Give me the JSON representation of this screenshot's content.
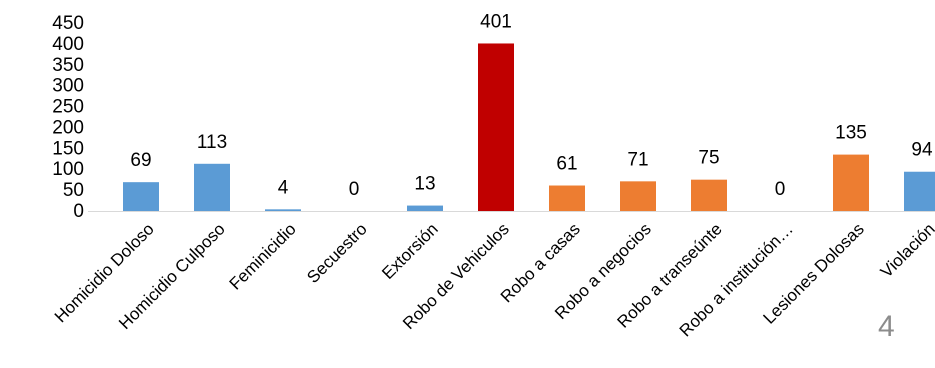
{
  "chart_data": {
    "type": "bar",
    "categories": [
      "Homicidio Doloso",
      "Homicidio Culposo",
      "Feminicidio",
      "Secuestro",
      "Extorsión",
      "Robo de Vehiculos",
      "Robo a casas",
      "Robo a negocios",
      "Robo a transeúnte",
      "Robo a institución…",
      "Lesiones Dolosas",
      "Violación"
    ],
    "values": [
      69,
      113,
      4,
      0,
      13,
      401,
      61,
      71,
      75,
      0,
      135,
      94
    ],
    "data_labels": [
      "69",
      "113",
      "4",
      "0",
      "13",
      "401",
      "61",
      "71",
      "75",
      "0",
      "135",
      "94"
    ],
    "bar_colors": [
      "#5b9bd5",
      "#5b9bd5",
      "#5b9bd5",
      "#5b9bd5",
      "#5b9bd5",
      "#c00000",
      "#ed7d31",
      "#ed7d31",
      "#ed7d31",
      "#ed7d31",
      "#ed7d31",
      "#5b9bd5"
    ],
    "ylim": [
      0,
      450
    ],
    "yticks": [
      0,
      50,
      100,
      150,
      200,
      250,
      300,
      350,
      400,
      450
    ],
    "ytick_labels": [
      "0",
      "50",
      "100",
      "150",
      "200",
      "250",
      "300",
      "350",
      "400",
      "450"
    ],
    "grid": false,
    "title": "",
    "xlabel": "",
    "ylabel": ""
  },
  "page_number": "4"
}
